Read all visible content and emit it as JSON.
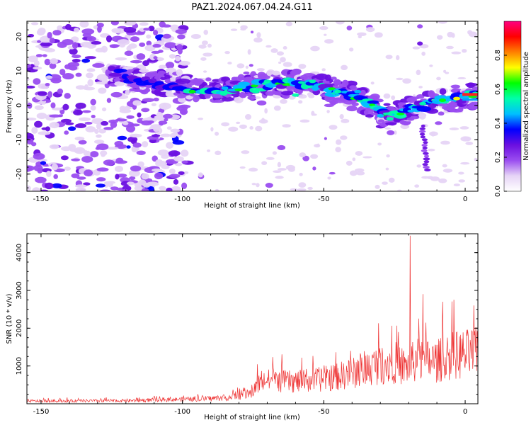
{
  "title": "PAZ1.2024.067.04.24.G11",
  "chart_data": [
    {
      "type": "heatmap",
      "xlabel": "Height of straight line (km)",
      "ylabel": "Frequency (Hz)",
      "xlim": [
        -155,
        4.5
      ],
      "ylim": [
        -25,
        24.5
      ],
      "xticks": [
        -150,
        -100,
        -50,
        0
      ],
      "yticks": [
        -20,
        -10,
        0,
        10,
        20
      ],
      "ridge": [
        [
          -125,
          10
        ],
        [
          -115,
          7
        ],
        [
          -100,
          6
        ],
        [
          -97,
          4
        ],
        [
          -90,
          4.5
        ],
        [
          -80,
          5
        ],
        [
          -70,
          6
        ],
        [
          -60,
          6.5
        ],
        [
          -50,
          5
        ],
        [
          -40,
          3
        ],
        [
          -33,
          0
        ],
        [
          -28,
          -3
        ],
        [
          -22,
          -2
        ],
        [
          -15,
          0
        ],
        [
          -10,
          1
        ],
        [
          -5,
          1.5
        ],
        [
          0,
          2.5
        ],
        [
          4,
          3
        ]
      ],
      "colorbar": {
        "label": "Normalized spectral amplitude",
        "range": [
          0,
          1
        ],
        "ticks": [
          "0.0",
          "0.2",
          "0.4",
          "0.6",
          "0.8"
        ],
        "colors": [
          "#ffffff",
          "#e6d4f6",
          "#9a4df0",
          "#6a0fe0",
          "#0000ff",
          "#00bfff",
          "#00ffaa",
          "#00ff00",
          "#ffff00",
          "#ff8000",
          "#ff0000",
          "#ff0080"
        ]
      }
    },
    {
      "type": "line",
      "xlabel": "Height of straight line (km)",
      "ylabel": "SNR (10 * v/v)",
      "xlim": [
        -155,
        4.5
      ],
      "ylim": [
        0,
        4500
      ],
      "xticks": [
        -150,
        -100,
        -50,
        0
      ],
      "yticks": [
        1000,
        2000,
        3000,
        4000
      ],
      "color": "#ee3333",
      "envelope": [
        [
          -155,
          100
        ],
        [
          -120,
          110
        ],
        [
          -110,
          140
        ],
        [
          -95,
          170
        ],
        [
          -85,
          220
        ],
        [
          -76,
          350
        ],
        [
          -72,
          850
        ],
        [
          -60,
          800
        ],
        [
          -50,
          900
        ],
        [
          -40,
          1100
        ],
        [
          -30,
          1450
        ],
        [
          -24,
          1500
        ],
        [
          -21,
          1300
        ],
        [
          -20,
          1400
        ],
        [
          -17,
          1600
        ],
        [
          -10,
          1550
        ],
        [
          -5,
          1750
        ],
        [
          0,
          1800
        ],
        [
          4.5,
          1850
        ]
      ],
      "spikes": [
        [
          -19.5,
          4450
        ],
        [
          -15,
          2900
        ],
        [
          -8,
          2700
        ],
        [
          -4,
          2750
        ],
        [
          3,
          2600
        ]
      ]
    }
  ]
}
